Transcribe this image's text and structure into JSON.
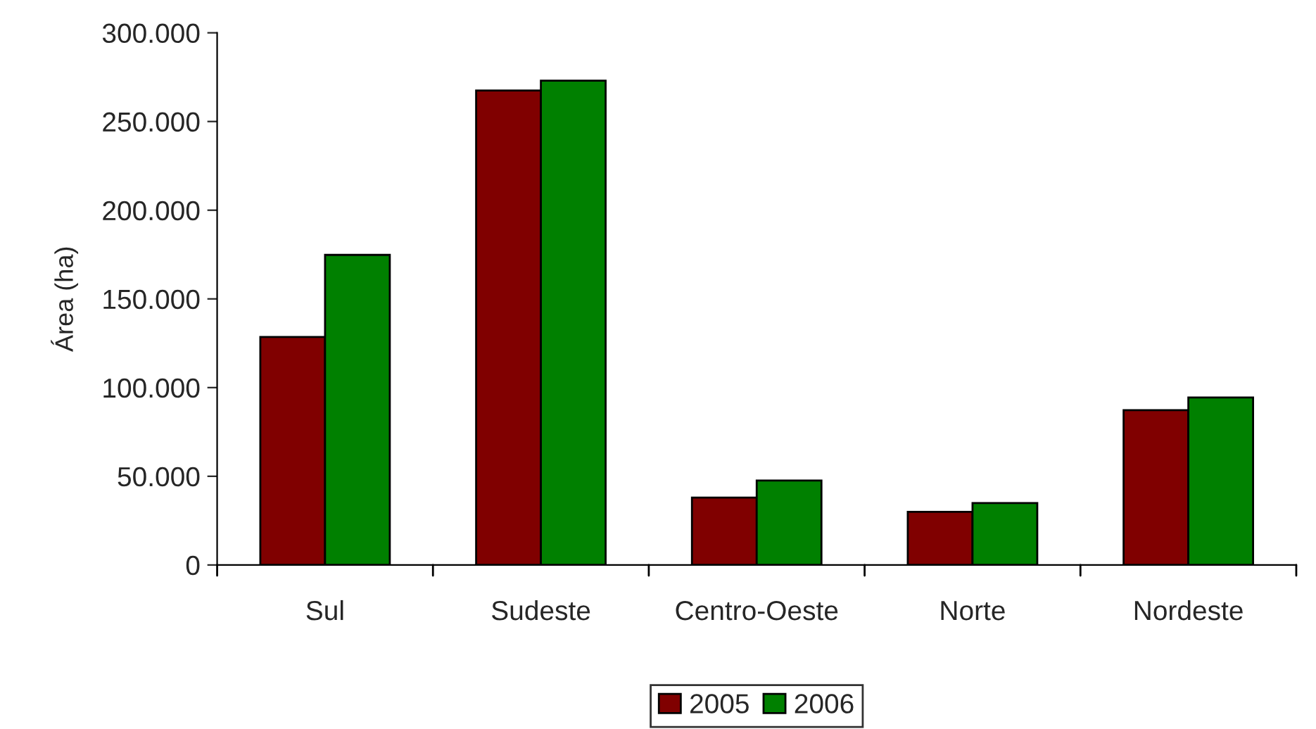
{
  "chart_data": {
    "type": "bar",
    "ylabel": "Área (ha)",
    "categories": [
      "Sul",
      "Sudeste",
      "Centro-Oeste",
      "Norte",
      "Nordeste"
    ],
    "series": [
      {
        "name": "2005",
        "color": "#800000",
        "values": [
          128500,
          267500,
          38000,
          30000,
          87300
        ]
      },
      {
        "name": "2006",
        "color": "#008000",
        "values": [
          174800,
          273000,
          47600,
          34900,
          94400
        ]
      }
    ],
    "ylim": [
      0,
      300000
    ],
    "yticks": [
      {
        "value": 0,
        "label": "0"
      },
      {
        "value": 50000,
        "label": "50.000"
      },
      {
        "value": 100000,
        "label": "100.000"
      },
      {
        "value": 150000,
        "label": "150.000"
      },
      {
        "value": 200000,
        "label": "200.000"
      },
      {
        "value": 250000,
        "label": "250.000"
      },
      {
        "value": 300000,
        "label": "300.000"
      }
    ],
    "grid": false,
    "legend": "bottom"
  }
}
